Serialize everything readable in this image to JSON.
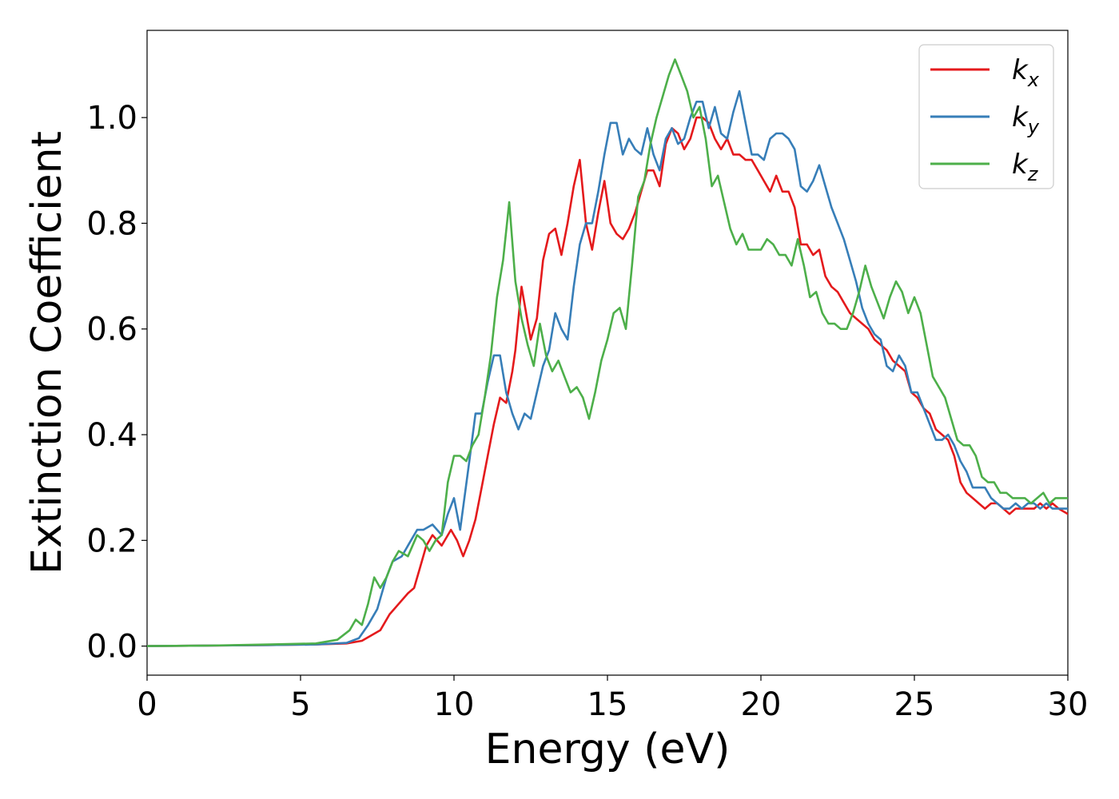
{
  "chart_data": {
    "type": "line",
    "title": "",
    "xlabel": "Energy (eV)",
    "ylabel": "Extinction Coefficient",
    "xlim": [
      0,
      30
    ],
    "ylim": [
      -0.055,
      1.165
    ],
    "xticks": [
      0,
      5,
      10,
      15,
      20,
      25,
      30
    ],
    "xtick_labels": [
      "0",
      "5",
      "10",
      "15",
      "20",
      "25",
      "30"
    ],
    "yticks": [
      0.0,
      0.2,
      0.4,
      0.6,
      0.8,
      1.0
    ],
    "ytick_labels": [
      "0.0",
      "0.2",
      "0.4",
      "0.6",
      "0.8",
      "1.0"
    ],
    "grid": false,
    "legend_position": "top-right",
    "series": [
      {
        "name": "k_x",
        "legend_base": "k",
        "legend_sub": "x",
        "color": "#e41a1c",
        "x": [
          0,
          2,
          4,
          5.5,
          6.5,
          7.0,
          7.3,
          7.6,
          7.9,
          8.2,
          8.5,
          8.7,
          8.9,
          9.1,
          9.3,
          9.6,
          9.9,
          10.1,
          10.3,
          10.5,
          10.7,
          10.9,
          11.1,
          11.3,
          11.5,
          11.7,
          11.9,
          12.0,
          12.2,
          12.5,
          12.7,
          12.9,
          13.1,
          13.3,
          13.5,
          13.7,
          13.9,
          14.1,
          14.3,
          14.5,
          14.7,
          14.9,
          15.1,
          15.3,
          15.5,
          15.7,
          15.9,
          16.1,
          16.3,
          16.5,
          16.7,
          16.9,
          17.1,
          17.3,
          17.5,
          17.7,
          17.9,
          18.1,
          18.3,
          18.5,
          18.7,
          18.9,
          19.1,
          19.3,
          19.5,
          19.7,
          19.9,
          20.1,
          20.3,
          20.5,
          20.7,
          20.9,
          21.1,
          21.3,
          21.5,
          21.7,
          21.9,
          22.1,
          22.3,
          22.5,
          22.7,
          22.9,
          23.1,
          23.3,
          23.5,
          23.7,
          23.9,
          24.1,
          24.3,
          24.5,
          24.7,
          24.9,
          25.1,
          25.3,
          25.5,
          25.7,
          25.9,
          26.1,
          26.3,
          26.5,
          26.7,
          26.9,
          27.1,
          27.3,
          27.5,
          27.7,
          27.9,
          28.1,
          28.3,
          28.5,
          28.7,
          28.9,
          29.1,
          29.3,
          29.5,
          29.7,
          30.0
        ],
        "y": [
          0.0,
          0.001,
          0.002,
          0.003,
          0.005,
          0.01,
          0.02,
          0.03,
          0.06,
          0.08,
          0.1,
          0.11,
          0.15,
          0.19,
          0.21,
          0.19,
          0.22,
          0.2,
          0.17,
          0.2,
          0.24,
          0.3,
          0.36,
          0.42,
          0.47,
          0.46,
          0.52,
          0.56,
          0.68,
          0.58,
          0.62,
          0.73,
          0.78,
          0.79,
          0.74,
          0.8,
          0.87,
          0.92,
          0.8,
          0.75,
          0.82,
          0.88,
          0.8,
          0.78,
          0.77,
          0.79,
          0.82,
          0.86,
          0.9,
          0.9,
          0.87,
          0.95,
          0.98,
          0.97,
          0.94,
          0.96,
          1.0,
          1.0,
          0.99,
          0.96,
          0.94,
          0.96,
          0.93,
          0.93,
          0.92,
          0.92,
          0.9,
          0.88,
          0.86,
          0.89,
          0.86,
          0.86,
          0.83,
          0.76,
          0.76,
          0.74,
          0.75,
          0.7,
          0.68,
          0.67,
          0.65,
          0.63,
          0.62,
          0.61,
          0.6,
          0.58,
          0.57,
          0.56,
          0.54,
          0.53,
          0.52,
          0.48,
          0.47,
          0.45,
          0.44,
          0.41,
          0.4,
          0.39,
          0.36,
          0.31,
          0.29,
          0.28,
          0.27,
          0.26,
          0.27,
          0.27,
          0.26,
          0.25,
          0.26,
          0.26,
          0.26,
          0.26,
          0.27,
          0.26,
          0.27,
          0.26,
          0.25
        ]
      },
      {
        "name": "k_y",
        "legend_base": "k",
        "legend_sub": "y",
        "color": "#377eb8",
        "x": [
          0,
          2,
          4,
          5.5,
          6.5,
          6.9,
          7.2,
          7.5,
          7.8,
          8.0,
          8.3,
          8.6,
          8.8,
          9.0,
          9.3,
          9.6,
          9.8,
          10.0,
          10.2,
          10.5,
          10.7,
          10.9,
          11.1,
          11.3,
          11.5,
          11.7,
          11.9,
          12.1,
          12.3,
          12.5,
          12.7,
          12.9,
          13.1,
          13.3,
          13.5,
          13.7,
          13.9,
          14.1,
          14.3,
          14.5,
          14.7,
          14.9,
          15.1,
          15.3,
          15.5,
          15.7,
          15.9,
          16.1,
          16.3,
          16.5,
          16.7,
          16.9,
          17.1,
          17.3,
          17.5,
          17.7,
          17.9,
          18.1,
          18.3,
          18.5,
          18.7,
          18.9,
          19.1,
          19.3,
          19.5,
          19.7,
          19.9,
          20.1,
          20.3,
          20.5,
          20.7,
          20.9,
          21.1,
          21.3,
          21.5,
          21.7,
          21.9,
          22.1,
          22.3,
          22.5,
          22.7,
          22.9,
          23.1,
          23.3,
          23.5,
          23.7,
          23.9,
          24.1,
          24.3,
          24.5,
          24.7,
          24.9,
          25.1,
          25.3,
          25.5,
          25.7,
          25.9,
          26.1,
          26.3,
          26.5,
          26.7,
          26.9,
          27.1,
          27.3,
          27.5,
          27.7,
          27.9,
          28.1,
          28.3,
          28.5,
          28.7,
          28.9,
          29.1,
          29.3,
          29.5,
          29.7,
          30.0
        ],
        "y": [
          0.0,
          0.001,
          0.002,
          0.003,
          0.006,
          0.015,
          0.04,
          0.07,
          0.13,
          0.16,
          0.17,
          0.2,
          0.22,
          0.22,
          0.23,
          0.21,
          0.25,
          0.28,
          0.22,
          0.35,
          0.44,
          0.44,
          0.5,
          0.55,
          0.55,
          0.48,
          0.44,
          0.41,
          0.44,
          0.43,
          0.48,
          0.53,
          0.56,
          0.63,
          0.6,
          0.58,
          0.68,
          0.76,
          0.8,
          0.8,
          0.86,
          0.93,
          0.99,
          0.99,
          0.93,
          0.96,
          0.94,
          0.93,
          0.98,
          0.93,
          0.9,
          0.96,
          0.98,
          0.95,
          0.96,
          1.0,
          1.03,
          1.03,
          0.98,
          1.02,
          0.97,
          0.96,
          1.01,
          1.05,
          0.99,
          0.93,
          0.93,
          0.92,
          0.96,
          0.97,
          0.97,
          0.96,
          0.94,
          0.87,
          0.86,
          0.88,
          0.91,
          0.87,
          0.83,
          0.8,
          0.77,
          0.73,
          0.69,
          0.64,
          0.61,
          0.59,
          0.58,
          0.53,
          0.52,
          0.55,
          0.53,
          0.48,
          0.48,
          0.45,
          0.42,
          0.39,
          0.39,
          0.4,
          0.38,
          0.35,
          0.33,
          0.3,
          0.3,
          0.3,
          0.28,
          0.27,
          0.26,
          0.26,
          0.27,
          0.26,
          0.27,
          0.27,
          0.26,
          0.27,
          0.26,
          0.26,
          0.26
        ]
      },
      {
        "name": "k_z",
        "legend_base": "k",
        "legend_sub": "z",
        "color": "#4daf4a",
        "x": [
          0,
          2,
          4,
          5.5,
          6.2,
          6.6,
          6.8,
          7.0,
          7.2,
          7.4,
          7.6,
          7.8,
          8.0,
          8.2,
          8.5,
          8.8,
          9.0,
          9.2,
          9.4,
          9.6,
          9.8,
          10.0,
          10.2,
          10.4,
          10.6,
          10.8,
          11.0,
          11.2,
          11.4,
          11.6,
          11.8,
          12.0,
          12.2,
          12.4,
          12.6,
          12.8,
          13.0,
          13.2,
          13.4,
          13.6,
          13.8,
          14.0,
          14.2,
          14.4,
          14.6,
          14.8,
          15.0,
          15.2,
          15.4,
          15.6,
          15.8,
          16.0,
          16.2,
          16.4,
          16.6,
          16.8,
          17.0,
          17.2,
          17.4,
          17.6,
          17.8,
          18.0,
          18.2,
          18.4,
          18.6,
          18.8,
          19.0,
          19.2,
          19.4,
          19.6,
          19.8,
          20.0,
          20.2,
          20.4,
          20.6,
          20.8,
          21.0,
          21.2,
          21.4,
          21.6,
          21.8,
          22.0,
          22.2,
          22.4,
          22.6,
          22.8,
          23.0,
          23.2,
          23.4,
          23.6,
          23.8,
          24.0,
          24.2,
          24.4,
          24.6,
          24.8,
          25.0,
          25.2,
          25.4,
          25.6,
          25.8,
          26.0,
          26.2,
          26.4,
          26.6,
          26.8,
          27.0,
          27.2,
          27.4,
          27.6,
          27.8,
          28.0,
          28.2,
          28.4,
          28.6,
          28.8,
          29.0,
          29.2,
          29.4,
          29.6,
          29.8,
          30.0
        ],
        "y": [
          0.0,
          0.001,
          0.003,
          0.005,
          0.012,
          0.03,
          0.05,
          0.04,
          0.08,
          0.13,
          0.11,
          0.13,
          0.16,
          0.18,
          0.17,
          0.21,
          0.2,
          0.18,
          0.2,
          0.21,
          0.31,
          0.36,
          0.36,
          0.35,
          0.38,
          0.4,
          0.47,
          0.55,
          0.66,
          0.73,
          0.84,
          0.69,
          0.62,
          0.57,
          0.53,
          0.61,
          0.55,
          0.52,
          0.54,
          0.51,
          0.48,
          0.49,
          0.47,
          0.43,
          0.48,
          0.54,
          0.58,
          0.63,
          0.64,
          0.6,
          0.72,
          0.85,
          0.88,
          0.95,
          1.0,
          1.04,
          1.08,
          1.11,
          1.08,
          1.05,
          1.0,
          1.02,
          0.96,
          0.87,
          0.89,
          0.84,
          0.79,
          0.76,
          0.78,
          0.75,
          0.75,
          0.75,
          0.77,
          0.76,
          0.74,
          0.74,
          0.72,
          0.77,
          0.72,
          0.66,
          0.67,
          0.63,
          0.61,
          0.61,
          0.6,
          0.6,
          0.63,
          0.67,
          0.72,
          0.68,
          0.65,
          0.62,
          0.66,
          0.69,
          0.67,
          0.63,
          0.66,
          0.63,
          0.57,
          0.51,
          0.49,
          0.47,
          0.43,
          0.39,
          0.38,
          0.38,
          0.36,
          0.32,
          0.31,
          0.31,
          0.29,
          0.29,
          0.28,
          0.28,
          0.28,
          0.27,
          0.28,
          0.29,
          0.27,
          0.28,
          0.28,
          0.28
        ]
      }
    ]
  }
}
